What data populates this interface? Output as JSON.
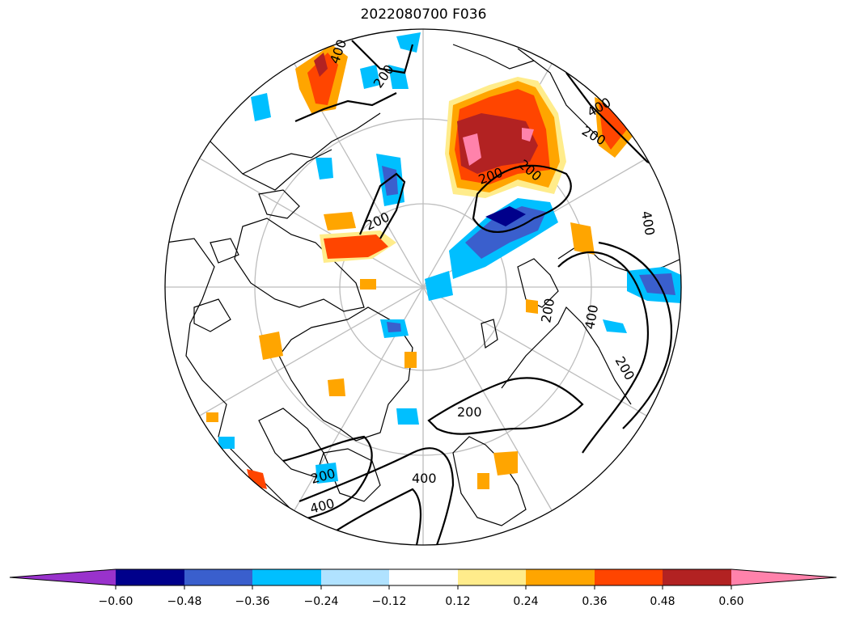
{
  "title": "2022080700 F036",
  "projection": "north-polar-stereographic",
  "colorbar": {
    "extend": "both",
    "ticks": [
      "−0.60",
      "−0.48",
      "−0.36",
      "−0.24",
      "−0.12",
      "0.12",
      "0.24",
      "0.36",
      "0.48",
      "0.60"
    ],
    "colors": [
      "#9932cc",
      "#00008b",
      "#3a5fcd",
      "#00bfff",
      "#b0e2ff",
      "#ffffff",
      "#ffec8b",
      "#ffa500",
      "#ff4500",
      "#b22222",
      "#ff82ab"
    ]
  },
  "contour_labels": [
    "400",
    "200",
    "400",
    "200",
    "200",
    "200",
    "200",
    "400",
    "200",
    "200",
    "400",
    "200",
    "400"
  ]
}
